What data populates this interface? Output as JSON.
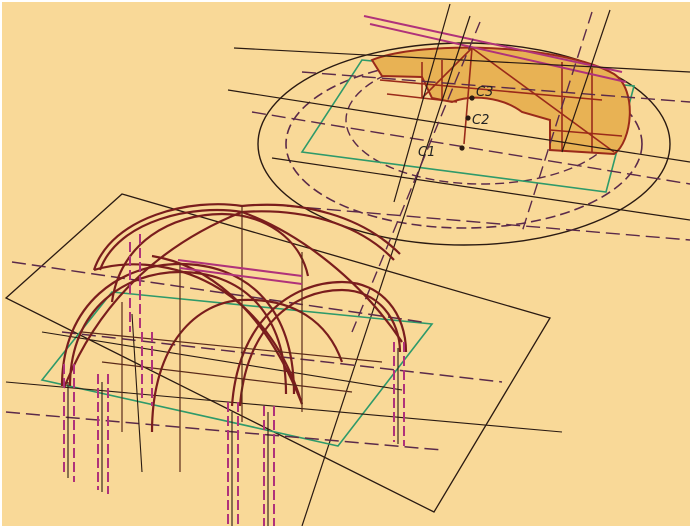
{
  "diagram": {
    "labels": {
      "c3": "C3",
      "c2": "C2",
      "c1": "C1"
    }
  },
  "colors": {
    "background": "#f9d998",
    "outline": "#2a1a12",
    "rib": "#7a1d1d",
    "dash": "#5b2a4a",
    "magenta": "#b0327a",
    "green": "#2e9a6a",
    "gold": "#e0a030"
  }
}
